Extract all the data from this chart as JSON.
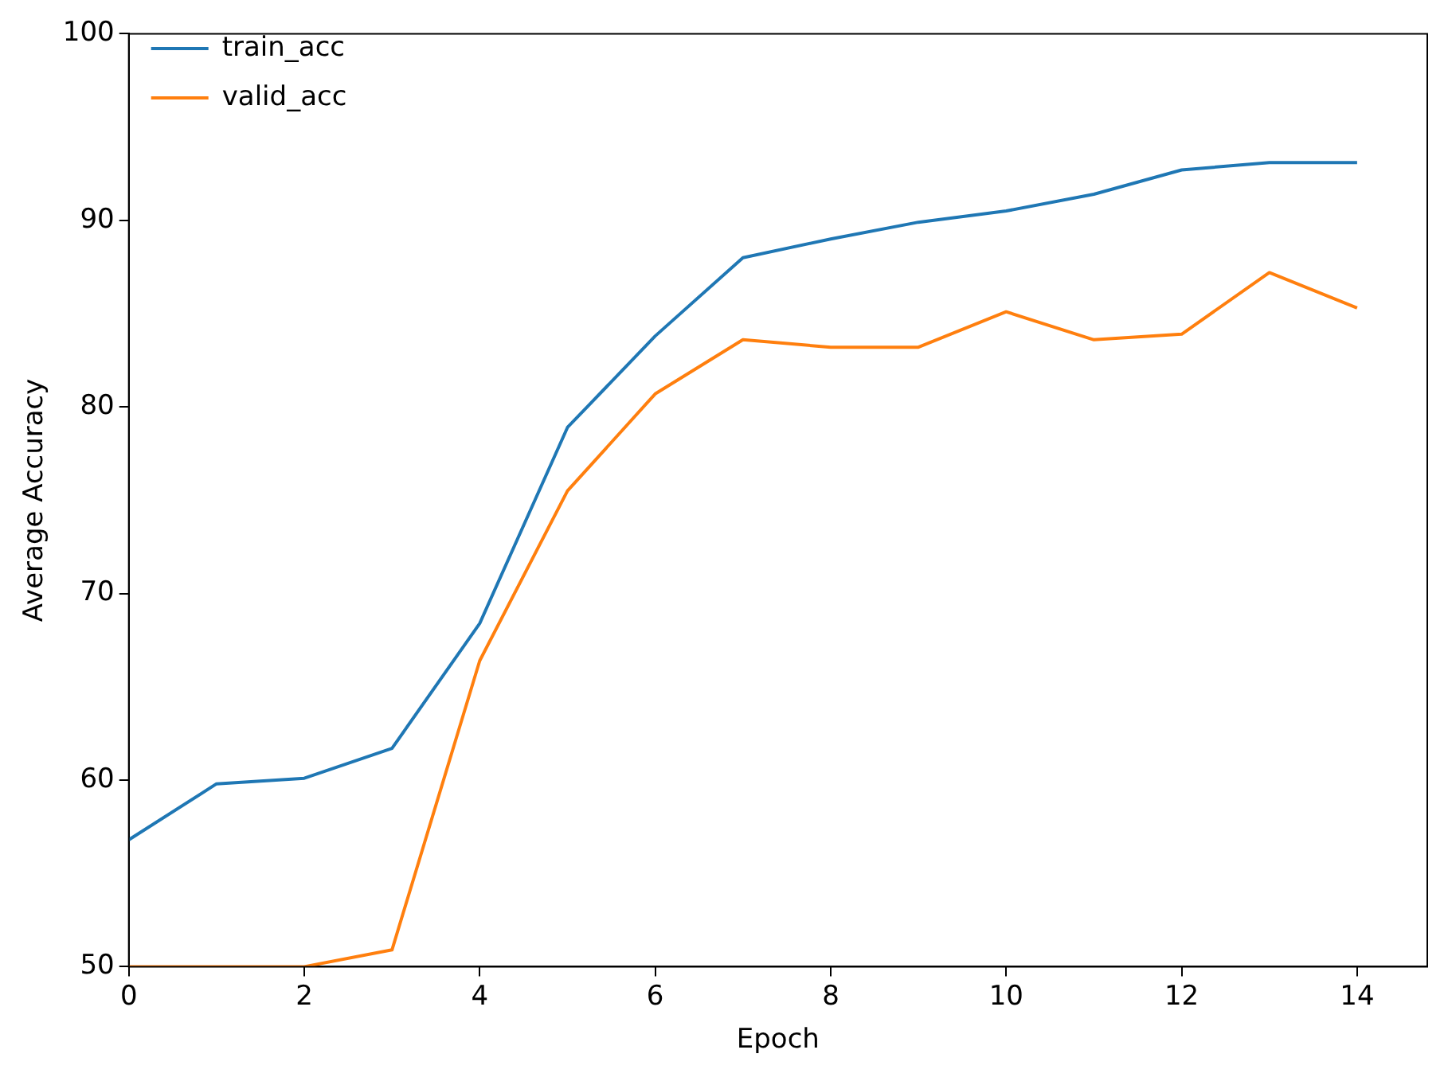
{
  "chart_data": {
    "type": "line",
    "xlabel": "Epoch",
    "ylabel": "Average Accuracy",
    "x": [
      0,
      1,
      2,
      3,
      4,
      5,
      6,
      7,
      8,
      9,
      10,
      11,
      12,
      13,
      14
    ],
    "series": [
      {
        "name": "train_acc",
        "color": "#1f77b4",
        "values": [
          56.8,
          59.8,
          60.1,
          61.7,
          68.4,
          78.9,
          83.8,
          88.0,
          89.0,
          89.9,
          90.5,
          91.4,
          92.7,
          93.1,
          93.1
        ]
      },
      {
        "name": "valid_acc",
        "color": "#ff7f0e",
        "values": [
          50.0,
          50.0,
          50.0,
          50.9,
          66.4,
          75.5,
          80.7,
          83.6,
          83.2,
          83.2,
          85.1,
          83.6,
          83.9,
          87.2,
          85.3
        ]
      }
    ],
    "xlim": [
      0,
      14.8
    ],
    "xticks": [
      0,
      2,
      4,
      6,
      8,
      10,
      12,
      14
    ],
    "ylim": [
      50,
      100
    ],
    "yticks": [
      50,
      60,
      70,
      80,
      90,
      100
    ],
    "grid": false,
    "legend": "top left",
    "marker": "none",
    "line_style": "solid"
  }
}
